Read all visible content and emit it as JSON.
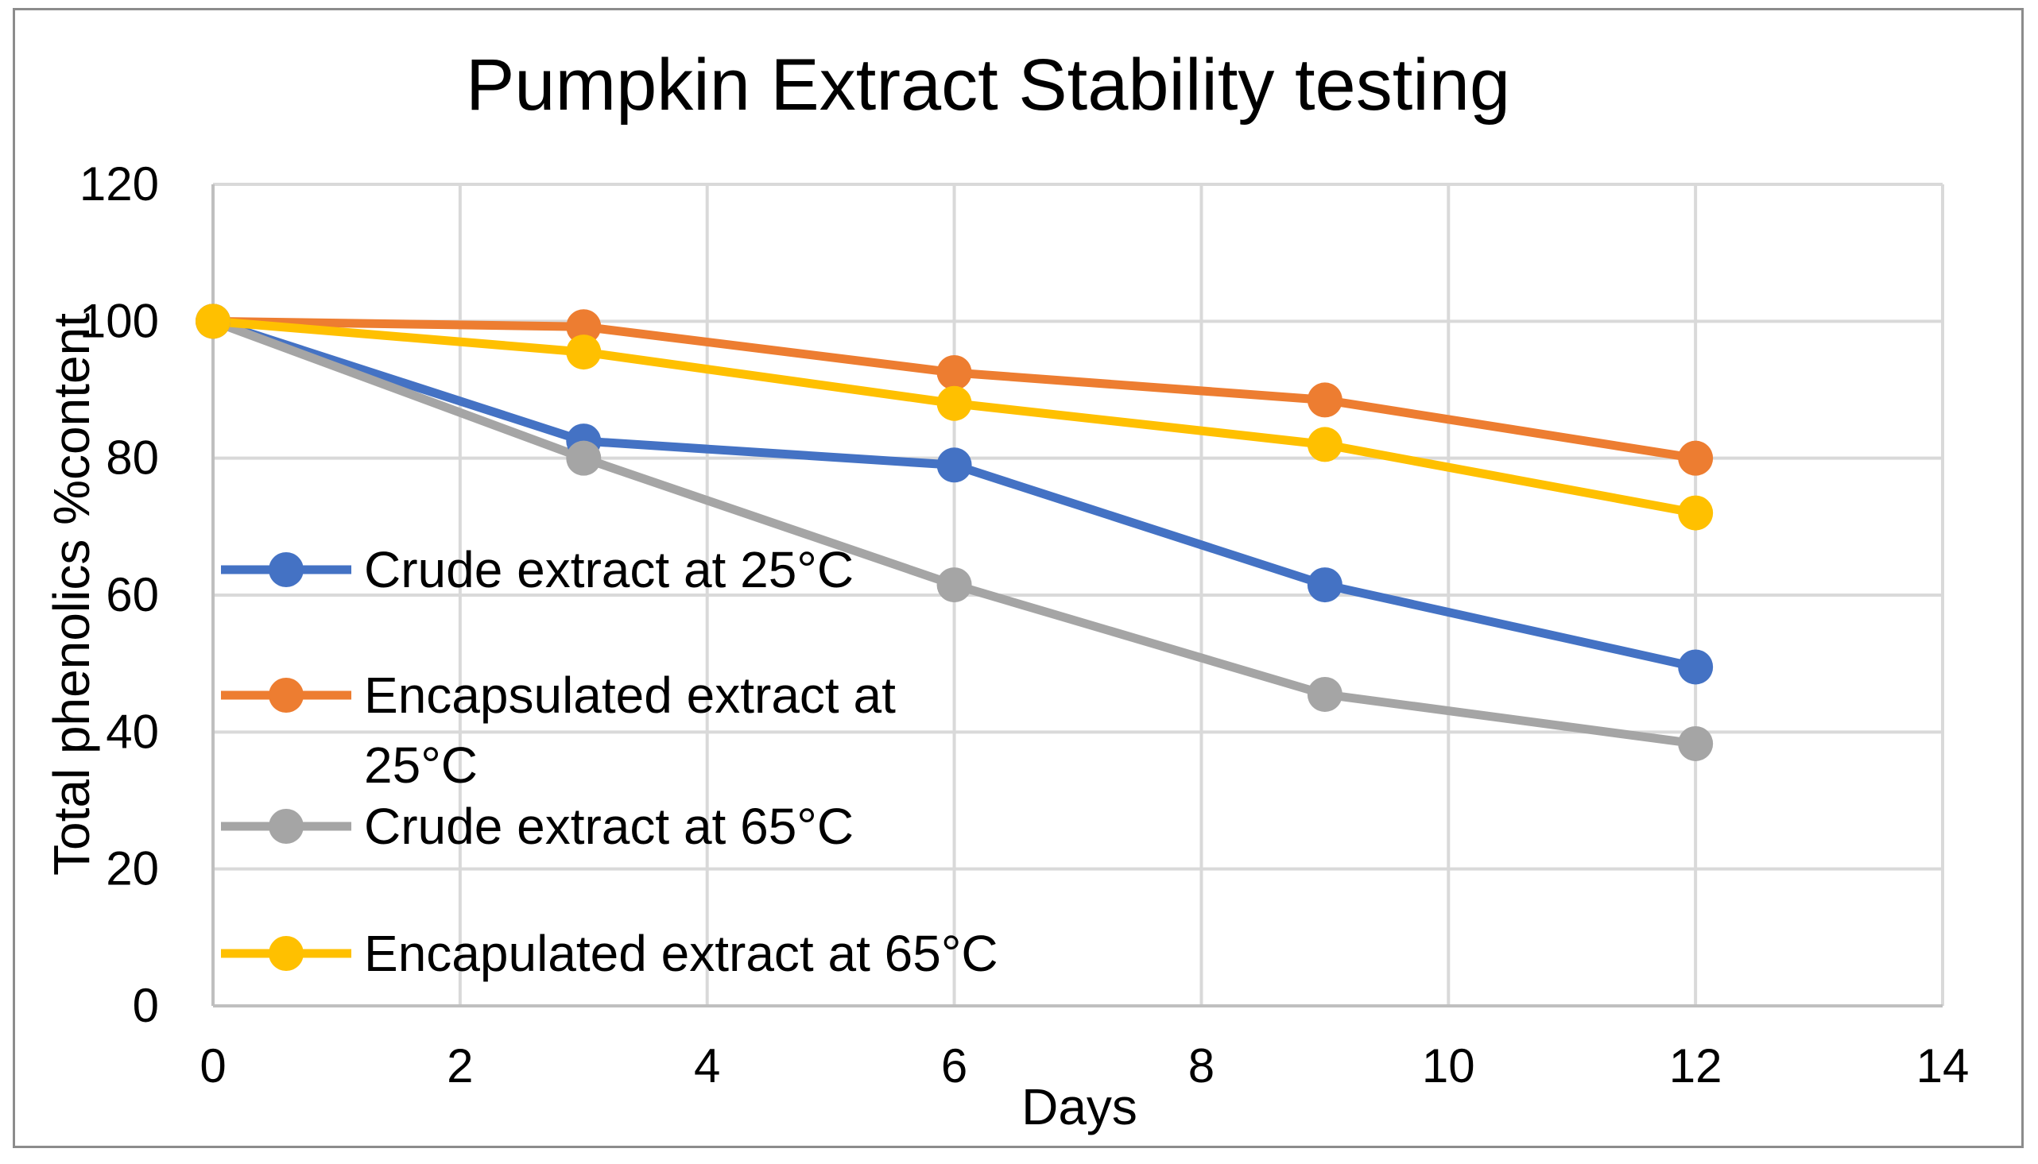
{
  "chart_data": {
    "type": "line",
    "title": "Pumpkin Extract Stability testing",
    "xlabel": "Days",
    "ylabel": "Total phenolics %content",
    "xlim": [
      0,
      14
    ],
    "ylim": [
      0,
      120
    ],
    "xticks": [
      0,
      2,
      4,
      6,
      8,
      10,
      12,
      14
    ],
    "yticks": [
      0,
      20,
      40,
      60,
      80,
      100,
      120
    ],
    "x": [
      0,
      3,
      6,
      9,
      12
    ],
    "grid": true,
    "legend_position": "left-inside",
    "series": [
      {
        "name": "Crude extract at 25°C",
        "color": "#4472C4",
        "values": [
          100,
          82.5,
          79,
          61.5,
          49.5
        ]
      },
      {
        "name": "Encapsulated extract at 25°C",
        "color": "#ED7D31",
        "values": [
          100,
          99.2,
          92.5,
          88.5,
          80
        ]
      },
      {
        "name": "Crude extract at 65°C",
        "color": "#A5A5A5",
        "values": [
          100,
          80,
          61.5,
          45.5,
          38.3
        ]
      },
      {
        "name": "Encapulated extract at 65°C",
        "color": "#FFC000",
        "values": [
          100,
          95.5,
          88,
          82,
          72
        ]
      }
    ]
  }
}
